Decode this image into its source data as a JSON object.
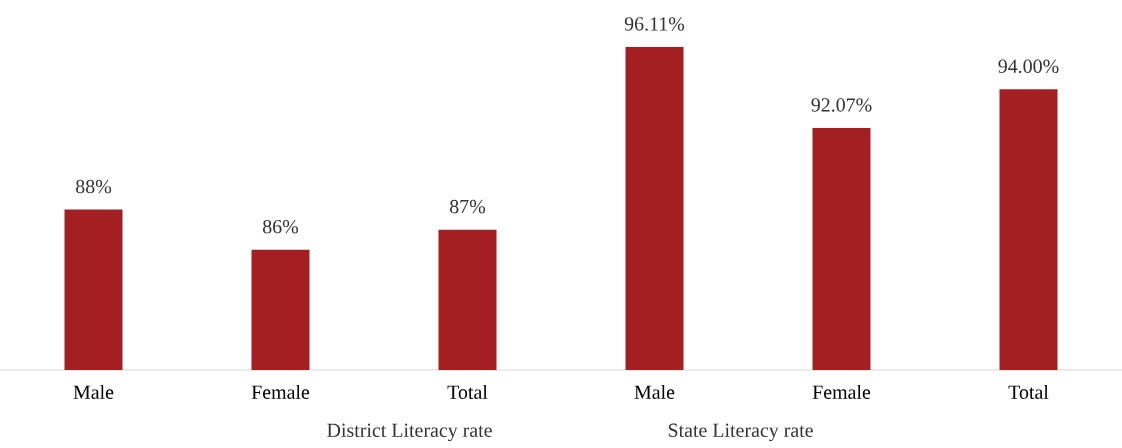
{
  "chart_data": {
    "type": "bar",
    "categories": [
      "Male",
      "Female",
      "Total",
      "Male",
      "Female",
      "Total"
    ],
    "values": [
      88,
      86,
      87,
      96.11,
      92.07,
      94
    ],
    "value_labels": [
      "88%",
      "86%",
      "87%",
      "96.11%",
      "92.07%",
      "94.00%"
    ],
    "color": "#a31f22",
    "ylim": [
      80,
      96.11
    ],
    "tick_labels": "x",
    "annotations": [
      "District Literacy rate",
      "State Literacy rate"
    ]
  }
}
